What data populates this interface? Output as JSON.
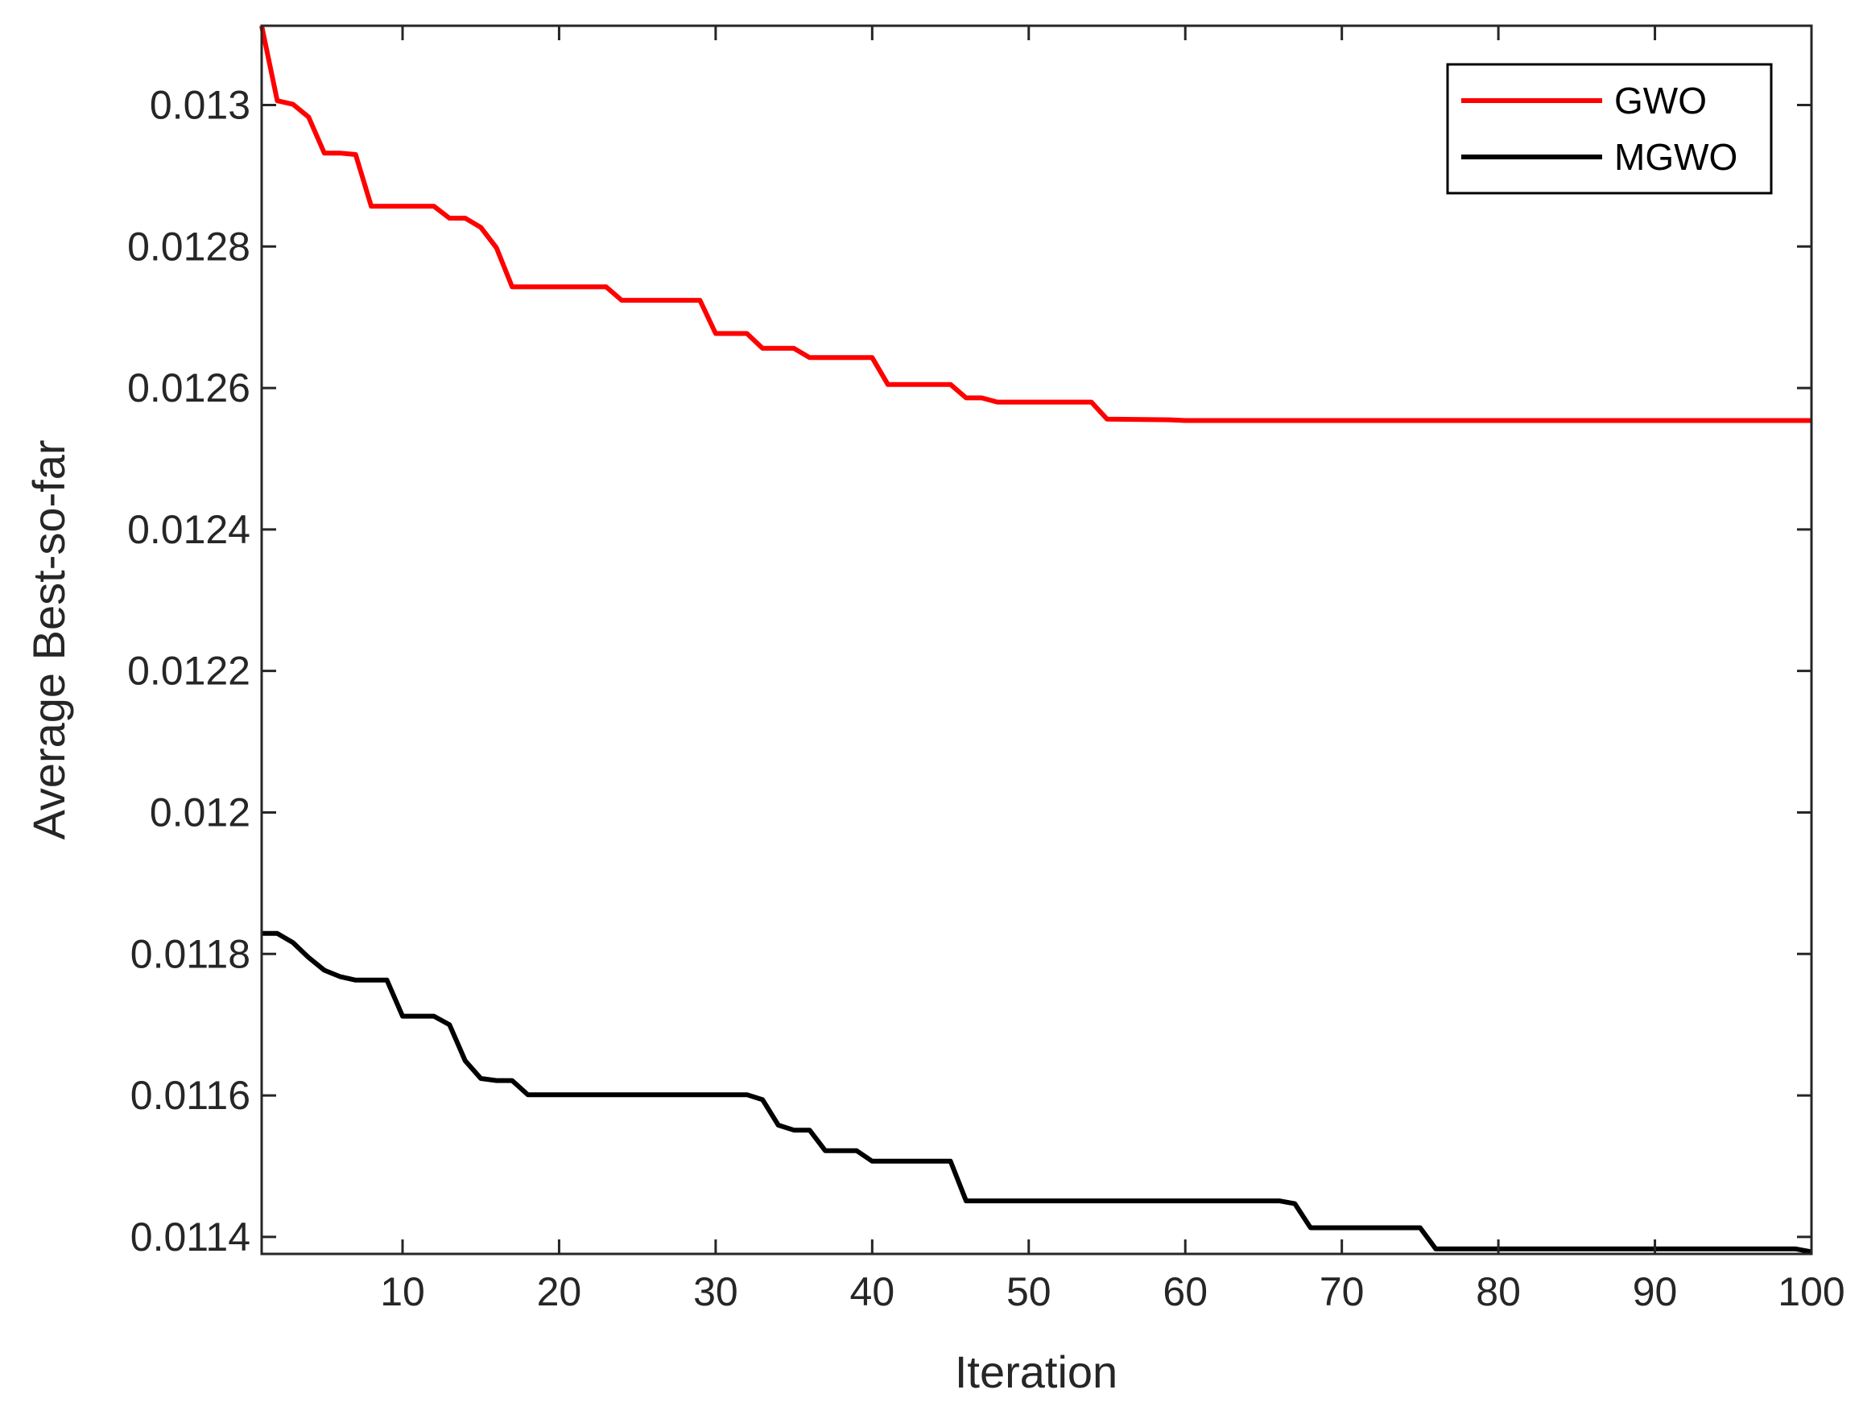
{
  "chart_data": {
    "type": "line",
    "title": "",
    "xlabel": "Iteration",
    "ylabel": "Average Best-so-far",
    "xlim": [
      1,
      100
    ],
    "ylim": [
      0.011376,
      0.013112
    ],
    "xticks": [
      10,
      20,
      30,
      40,
      50,
      60,
      70,
      80,
      90,
      100
    ],
    "xtick_labels": [
      "10",
      "20",
      "30",
      "40",
      "50",
      "60",
      "70",
      "80",
      "90",
      "100"
    ],
    "yticks": [
      0.0114,
      0.0116,
      0.0118,
      0.012,
      0.0122,
      0.0124,
      0.0126,
      0.0128,
      0.013
    ],
    "ytick_labels": [
      "0.0114",
      "0.0116",
      "0.0118",
      "0.012",
      "0.0122",
      "0.0124",
      "0.0126",
      "0.0128",
      "0.013"
    ],
    "grid": false,
    "box": true,
    "legend_position": "top-right",
    "series": [
      {
        "name": "GWO",
        "color": "#ff0000",
        "x": [
          1,
          2,
          3,
          4,
          5,
          6,
          7,
          8,
          12,
          13,
          14,
          15,
          16,
          17,
          23,
          24,
          29,
          30,
          32,
          33,
          35,
          36,
          40,
          41,
          45,
          46,
          47,
          48,
          54,
          55,
          59,
          60,
          100
        ],
        "y": [
          0.013112,
          0.013006,
          0.013001,
          0.012983,
          0.012932,
          0.012932,
          0.01293,
          0.012857,
          0.012857,
          0.01284,
          0.01284,
          0.012827,
          0.012798,
          0.012743,
          0.012743,
          0.012724,
          0.012724,
          0.012677,
          0.012677,
          0.012656,
          0.012656,
          0.012643,
          0.012643,
          0.012605,
          0.012605,
          0.012586,
          0.012586,
          0.01258,
          0.01258,
          0.012556,
          0.012555,
          0.012554,
          0.012554
        ]
      },
      {
        "name": "MGWO",
        "color": "#000000",
        "x": [
          1,
          2,
          3,
          4,
          5,
          6,
          7,
          9,
          10,
          12,
          13,
          14,
          15,
          16,
          17,
          18,
          32,
          33,
          34,
          35,
          36,
          37,
          39,
          40,
          45,
          46,
          66,
          67,
          68,
          75,
          76,
          99,
          100
        ],
        "y": [
          0.011829,
          0.011829,
          0.011816,
          0.011795,
          0.011777,
          0.011768,
          0.011763,
          0.011763,
          0.011712,
          0.011712,
          0.0117,
          0.011649,
          0.011624,
          0.011621,
          0.011621,
          0.011601,
          0.011601,
          0.011594,
          0.011558,
          0.011551,
          0.011551,
          0.011522,
          0.011522,
          0.011507,
          0.011507,
          0.011451,
          0.011451,
          0.011447,
          0.011413,
          0.011413,
          0.011383,
          0.011383,
          0.011379
        ]
      }
    ]
  }
}
